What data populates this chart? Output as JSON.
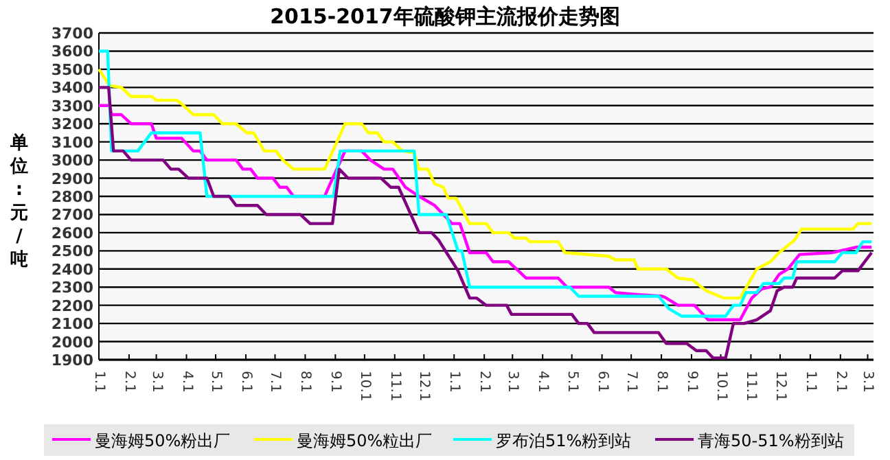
{
  "chart_data": {
    "type": "line",
    "title": "2015-2017年硫酸钾主流报价走势图",
    "ylabel": "单位:元/吨",
    "xlim": [
      "2015-01-01",
      "2017-03-07"
    ],
    "ylim": [
      1900,
      3700
    ],
    "xticks": [
      {
        "value": "2015-01-01",
        "label": "1.1"
      },
      {
        "value": "2015-02-01",
        "label": "2.1"
      },
      {
        "value": "2015-03-01",
        "label": "3.1"
      },
      {
        "value": "2015-04-01",
        "label": "4.1"
      },
      {
        "value": "2015-05-01",
        "label": "5.1"
      },
      {
        "value": "2015-06-01",
        "label": "6.1"
      },
      {
        "value": "2015-07-01",
        "label": "7.1"
      },
      {
        "value": "2015-08-01",
        "label": "8.1"
      },
      {
        "value": "2015-09-01",
        "label": "9.1"
      },
      {
        "value": "2015-10-01",
        "label": "10.1"
      },
      {
        "value": "2015-11-01",
        "label": "11.1"
      },
      {
        "value": "2015-12-01",
        "label": "12.1"
      },
      {
        "value": "2016-01-01",
        "label": "1.1"
      },
      {
        "value": "2016-02-01",
        "label": "2.1"
      },
      {
        "value": "2016-03-01",
        "label": "3.1"
      },
      {
        "value": "2016-04-01",
        "label": "4.1"
      },
      {
        "value": "2016-05-01",
        "label": "5.1"
      },
      {
        "value": "2016-06-01",
        "label": "6.1"
      },
      {
        "value": "2016-07-01",
        "label": "7.1"
      },
      {
        "value": "2016-08-01",
        "label": "8.1"
      },
      {
        "value": "2016-09-01",
        "label": "9.1"
      },
      {
        "value": "2016-10-01",
        "label": "10.1"
      },
      {
        "value": "2016-11-01",
        "label": "11.1"
      },
      {
        "value": "2016-12-01",
        "label": "12.1"
      },
      {
        "value": "2017-01-01",
        "label": "1.1"
      },
      {
        "value": "2017-02-01",
        "label": "2.1"
      },
      {
        "value": "2017-03-01",
        "label": "3.1"
      }
    ],
    "yticks": [
      1900,
      2000,
      2100,
      2200,
      2300,
      2400,
      2500,
      2600,
      2700,
      2800,
      2900,
      3000,
      3100,
      3200,
      3300,
      3400,
      3500,
      3600,
      3700
    ],
    "grid": "y",
    "legend": "bottom",
    "marker": "none",
    "line_style": "solid",
    "series": [
      {
        "name": "曼海姆50%粉出厂",
        "color": "#ff00ff",
        "x": [
          "2015-01-01",
          "2015-01-12",
          "2015-01-14",
          "2015-01-24",
          "2015-02-03",
          "2015-02-24",
          "2015-03-01",
          "2015-03-27",
          "2015-04-08",
          "2015-04-15",
          "2015-04-22",
          "2015-05-22",
          "2015-05-29",
          "2015-06-06",
          "2015-06-13",
          "2015-06-29",
          "2015-07-06",
          "2015-07-13",
          "2015-07-20",
          "2015-08-21",
          "2015-08-25",
          "2015-09-11",
          "2015-09-28",
          "2015-10-07",
          "2015-10-21",
          "2015-10-30",
          "2015-11-12",
          "2015-11-26",
          "2015-12-12",
          "2015-12-21",
          "2015-12-30",
          "2016-01-07",
          "2016-01-17",
          "2016-02-03",
          "2016-02-10",
          "2016-02-26",
          "2016-03-15",
          "2016-04-17",
          "2016-04-26",
          "2016-06-08",
          "2016-06-15",
          "2016-07-04",
          "2016-08-02",
          "2016-08-06",
          "2016-08-18",
          "2016-09-04",
          "2016-09-18",
          "2016-10-21",
          "2016-11-02",
          "2016-11-12",
          "2016-11-21",
          "2016-11-30",
          "2016-12-09",
          "2016-12-21",
          "2017-01-24",
          "2017-02-17",
          "2017-03-05"
        ],
        "values": [
          3300,
          3300,
          3250,
          3250,
          3200,
          3200,
          3120,
          3120,
          3050,
          3050,
          3000,
          3000,
          2950,
          2950,
          2900,
          2900,
          2850,
          2850,
          2800,
          2800,
          2850,
          3050,
          3050,
          3000,
          2950,
          2950,
          2850,
          2800,
          2750,
          2700,
          2650,
          2650,
          2490,
          2490,
          2440,
          2440,
          2350,
          2350,
          2300,
          2300,
          2270,
          2260,
          2250,
          2240,
          2200,
          2200,
          2120,
          2120,
          2240,
          2290,
          2300,
          2370,
          2400,
          2480,
          2490,
          2520,
          2520
        ]
      },
      {
        "name": "曼海姆50%粒出厂",
        "color": "#ffff00",
        "x": [
          "2015-01-01",
          "2015-01-12",
          "2015-01-24",
          "2015-02-03",
          "2015-02-24",
          "2015-03-01",
          "2015-03-22",
          "2015-03-29",
          "2015-04-08",
          "2015-04-29",
          "2015-05-08",
          "2015-05-22",
          "2015-06-02",
          "2015-06-09",
          "2015-06-20",
          "2015-07-02",
          "2015-07-09",
          "2015-07-20",
          "2015-08-21",
          "2015-09-11",
          "2015-09-28",
          "2015-10-05",
          "2015-10-14",
          "2015-10-21",
          "2015-10-30",
          "2015-11-09",
          "2015-11-21",
          "2015-11-26",
          "2015-12-05",
          "2015-12-12",
          "2015-12-21",
          "2015-12-26",
          "2016-01-03",
          "2016-01-17",
          "2016-02-03",
          "2016-02-10",
          "2016-02-26",
          "2016-03-03",
          "2016-03-15",
          "2016-03-19",
          "2016-04-17",
          "2016-04-24",
          "2016-06-08",
          "2016-06-15",
          "2016-07-04",
          "2016-07-08",
          "2016-08-06",
          "2016-08-18",
          "2016-09-02",
          "2016-09-16",
          "2016-10-04",
          "2016-10-21",
          "2016-11-07",
          "2016-11-21",
          "2016-11-30",
          "2016-12-16",
          "2016-12-23",
          "2017-02-14",
          "2017-02-19",
          "2017-03-05"
        ],
        "values": [
          3500,
          3410,
          3400,
          3350,
          3350,
          3330,
          3330,
          3300,
          3250,
          3250,
          3200,
          3200,
          3150,
          3150,
          3050,
          3050,
          3000,
          2950,
          2950,
          3200,
          3200,
          3150,
          3150,
          3100,
          3100,
          3050,
          3040,
          2950,
          2950,
          2870,
          2850,
          2790,
          2790,
          2650,
          2650,
          2600,
          2600,
          2570,
          2570,
          2550,
          2550,
          2490,
          2470,
          2450,
          2450,
          2400,
          2400,
          2350,
          2340,
          2280,
          2240,
          2240,
          2400,
          2440,
          2490,
          2560,
          2620,
          2620,
          2650,
          2650
        ]
      },
      {
        "name": "罗布泊51%粉到站",
        "color": "#00ffff",
        "x": [
          "2015-01-01",
          "2015-01-10",
          "2015-01-14",
          "2015-01-24",
          "2015-02-10",
          "2015-02-24",
          "2015-04-15",
          "2015-04-22",
          "2015-08-30",
          "2015-09-06",
          "2015-11-21",
          "2015-11-26",
          "2015-12-24",
          "2016-01-05",
          "2016-01-09",
          "2016-01-17",
          "2016-04-29",
          "2016-05-08",
          "2016-07-29",
          "2016-08-09",
          "2016-08-22",
          "2016-10-06",
          "2016-10-14",
          "2016-10-21",
          "2016-10-27",
          "2016-11-07",
          "2016-11-14",
          "2016-11-30",
          "2016-12-05",
          "2016-12-14",
          "2016-12-18",
          "2017-01-26",
          "2017-02-03",
          "2017-02-17",
          "2017-02-24",
          "2017-03-05"
        ],
        "values": [
          3600,
          3600,
          3050,
          3050,
          3050,
          3150,
          3150,
          2800,
          2800,
          3050,
          3050,
          2700,
          2700,
          2500,
          2500,
          2300,
          2300,
          2250,
          2250,
          2180,
          2140,
          2140,
          2200,
          2200,
          2270,
          2270,
          2320,
          2320,
          2350,
          2350,
          2440,
          2440,
          2490,
          2490,
          2550,
          2550
        ]
      },
      {
        "name": "青海50-51%粉到站",
        "color": "#800080",
        "x": [
          "2015-01-01",
          "2015-01-11",
          "2015-01-16",
          "2015-01-26",
          "2015-02-03",
          "2015-03-08",
          "2015-03-16",
          "2015-03-24",
          "2015-04-03",
          "2015-04-22",
          "2015-04-29",
          "2015-05-15",
          "2015-05-22",
          "2015-06-13",
          "2015-06-22",
          "2015-07-27",
          "2015-08-06",
          "2015-08-29",
          "2015-09-05",
          "2015-09-14",
          "2015-10-18",
          "2015-10-28",
          "2015-11-05",
          "2015-11-26",
          "2015-12-09",
          "2015-12-16",
          "2016-01-05",
          "2016-01-17",
          "2016-01-24",
          "2016-02-03",
          "2016-02-24",
          "2016-02-29",
          "2016-05-01",
          "2016-05-08",
          "2016-05-17",
          "2016-05-24",
          "2016-07-29",
          "2016-08-06",
          "2016-08-27",
          "2016-09-06",
          "2016-09-16",
          "2016-09-23",
          "2016-10-06",
          "2016-10-14",
          "2016-10-25",
          "2016-11-07",
          "2016-11-21",
          "2016-11-28",
          "2016-12-05",
          "2016-12-14",
          "2016-12-18",
          "2017-01-26",
          "2017-02-03",
          "2017-02-19",
          "2017-03-05"
        ],
        "values": [
          3400,
          3400,
          3050,
          3050,
          3000,
          3000,
          2950,
          2950,
          2900,
          2900,
          2800,
          2800,
          2750,
          2750,
          2700,
          2700,
          2650,
          2650,
          2950,
          2900,
          2900,
          2850,
          2850,
          2600,
          2600,
          2560,
          2390,
          2240,
          2240,
          2200,
          2200,
          2150,
          2150,
          2100,
          2100,
          2050,
          2050,
          1990,
          1990,
          1950,
          1950,
          1910,
          1910,
          2100,
          2100,
          2120,
          2170,
          2280,
          2300,
          2300,
          2350,
          2350,
          2390,
          2390,
          2490
        ]
      }
    ]
  }
}
